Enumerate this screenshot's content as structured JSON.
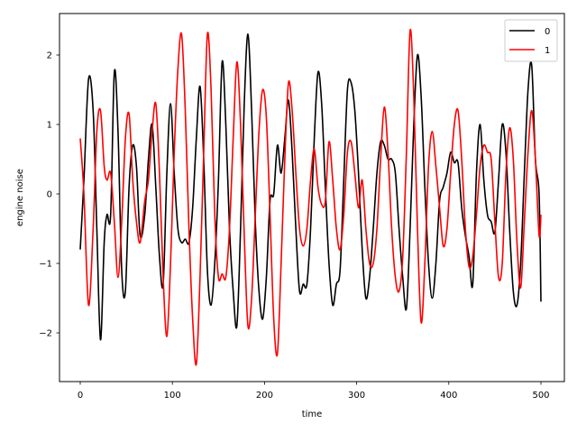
{
  "chart_data": {
    "type": "line",
    "title": "",
    "xlabel": "time",
    "ylabel": "engine noise",
    "xlim": [
      -25,
      525
    ],
    "ylim": [
      -2.65,
      2.6
    ],
    "xticks": [
      0,
      100,
      200,
      300,
      400,
      500
    ],
    "yticks": [
      -2,
      -1,
      0,
      1,
      2
    ],
    "xtick_labels": [
      "0",
      "100",
      "200",
      "300",
      "400",
      "500"
    ],
    "ytick_labels": [
      "−2",
      "−1",
      "0",
      "1",
      "2"
    ],
    "grid": false,
    "legend": {
      "position": "upper right",
      "entries": [
        "0",
        "1"
      ]
    },
    "series": [
      {
        "name": "0",
        "color": "#000000",
        "x": [
          0,
          4,
          9,
          14,
          18,
          22,
          26,
          29,
          33,
          37,
          41,
          45,
          49,
          53,
          57,
          61,
          65,
          70,
          74,
          78,
          82,
          86,
          90,
          94,
          98,
          102,
          106,
          110,
          114,
          118,
          122,
          126,
          130,
          134,
          138,
          142,
          146,
          150,
          154,
          158,
          162,
          166,
          170,
          174,
          178,
          182,
          186,
          190,
          194,
          198,
          202,
          206,
          210,
          214,
          218,
          222,
          226,
          230,
          234,
          238,
          242,
          246,
          250,
          254,
          258,
          262,
          266,
          270,
          274,
          278,
          282,
          286,
          290,
          294,
          298,
          302,
          306,
          310,
          314,
          318,
          322,
          326,
          330,
          334,
          338,
          342,
          346,
          350,
          354,
          358,
          362,
          366,
          370,
          374,
          378,
          382,
          386,
          390,
          394,
          398,
          402,
          406,
          410,
          414,
          418,
          422,
          426,
          430,
          434,
          438,
          442,
          446,
          450,
          454,
          458,
          462,
          466,
          470,
          474,
          478,
          482,
          486,
          490,
          494,
          498,
          500
        ],
        "y": [
          -0.8,
          0.2,
          1.65,
          1.2,
          -0.5,
          -2.1,
          -0.7,
          -0.3,
          -0.3,
          1.75,
          0.9,
          -1.1,
          -1.4,
          0.1,
          0.7,
          0.4,
          -0.6,
          -0.3,
          0.5,
          1.0,
          0.1,
          -0.9,
          -1.3,
          0.3,
          1.3,
          0.3,
          -0.5,
          -0.7,
          -0.65,
          -0.7,
          -0.2,
          0.8,
          1.55,
          0.5,
          -1.1,
          -1.6,
          -1.0,
          0.2,
          1.9,
          1.0,
          -0.5,
          -1.4,
          -1.9,
          -0.5,
          1.3,
          2.3,
          1.2,
          -0.4,
          -1.4,
          -1.8,
          -1.2,
          -0.1,
          0.0,
          0.7,
          0.3,
          0.8,
          1.35,
          0.6,
          -0.5,
          -1.4,
          -1.3,
          -1.3,
          -0.5,
          0.8,
          1.75,
          1.3,
          0.1,
          -1.0,
          -1.6,
          -1.3,
          -1.1,
          0.2,
          1.5,
          1.6,
          1.2,
          0.3,
          -0.8,
          -1.5,
          -1.2,
          -0.5,
          0.3,
          0.75,
          0.7,
          0.5,
          0.5,
          0.3,
          -0.5,
          -1.2,
          -1.65,
          -0.5,
          1.0,
          2.0,
          1.4,
          0.1,
          -1.0,
          -1.5,
          -1.0,
          -0.1,
          0.1,
          0.3,
          0.6,
          0.45,
          0.45,
          -0.2,
          -0.6,
          -0.9,
          -1.3,
          0.3,
          1.0,
          0.2,
          -0.3,
          -0.4,
          -0.55,
          0.2,
          1.0,
          0.6,
          -0.5,
          -1.4,
          -1.6,
          -1.0,
          0.3,
          1.5,
          1.85,
          0.5,
          0.0,
          -1.55
        ]
      },
      {
        "name": "1",
        "color": "#ff0000",
        "x": [
          0,
          4,
          9,
          14,
          18,
          22,
          26,
          29,
          33,
          37,
          41,
          45,
          49,
          53,
          57,
          61,
          65,
          70,
          74,
          78,
          82,
          86,
          90,
          94,
          98,
          102,
          106,
          110,
          114,
          118,
          122,
          126,
          130,
          134,
          138,
          142,
          146,
          150,
          154,
          158,
          162,
          166,
          170,
          174,
          178,
          182,
          186,
          190,
          194,
          198,
          202,
          206,
          210,
          214,
          218,
          222,
          226,
          230,
          234,
          238,
          242,
          246,
          250,
          254,
          258,
          262,
          266,
          270,
          274,
          278,
          282,
          286,
          290,
          294,
          298,
          302,
          306,
          310,
          314,
          318,
          322,
          326,
          330,
          334,
          338,
          342,
          346,
          350,
          354,
          358,
          362,
          366,
          370,
          374,
          378,
          382,
          386,
          390,
          394,
          398,
          402,
          406,
          410,
          414,
          418,
          422,
          426,
          430,
          434,
          438,
          442,
          446,
          450,
          454,
          458,
          462,
          466,
          470,
          474,
          478,
          482,
          486,
          490,
          494,
          498,
          500
        ],
        "y": [
          0.8,
          0.0,
          -1.6,
          -0.5,
          0.9,
          1.2,
          0.4,
          0.2,
          0.3,
          -0.4,
          -1.2,
          -0.4,
          0.8,
          1.15,
          0.2,
          -0.4,
          -0.7,
          -0.1,
          0.2,
          0.9,
          1.3,
          0.3,
          -1.2,
          -2.05,
          -1.0,
          0.6,
          1.8,
          2.3,
          1.2,
          -0.5,
          -1.8,
          -2.45,
          -1.2,
          0.6,
          2.3,
          1.5,
          -0.3,
          -1.2,
          -1.15,
          -1.2,
          -0.5,
          0.8,
          1.9,
          1.0,
          -0.6,
          -1.9,
          -1.5,
          -0.3,
          0.9,
          1.5,
          1.1,
          -0.3,
          -1.8,
          -2.3,
          -1.0,
          0.5,
          1.6,
          1.2,
          0.3,
          -0.5,
          -0.75,
          -0.5,
          0.2,
          0.65,
          0.1,
          -0.15,
          -0.1,
          0.75,
          0.2,
          -0.5,
          -0.8,
          -0.3,
          0.6,
          0.75,
          0.3,
          -0.2,
          0.2,
          -0.5,
          -1.0,
          -1.0,
          -0.5,
          0.5,
          1.25,
          0.6,
          -0.5,
          -1.2,
          -1.4,
          -0.9,
          0.6,
          2.35,
          1.4,
          -0.5,
          -1.85,
          -1.0,
          0.4,
          0.9,
          0.4,
          -0.2,
          -0.75,
          -0.5,
          0.3,
          1.0,
          1.2,
          0.5,
          -0.5,
          -1.05,
          -0.9,
          -0.3,
          0.4,
          0.7,
          0.6,
          0.5,
          -0.4,
          -1.2,
          -1.0,
          0.3,
          0.95,
          0.5,
          -0.7,
          -1.35,
          -0.4,
          0.6,
          1.2,
          0.5,
          -0.6,
          -0.3
        ]
      }
    ]
  },
  "axes": {
    "xlabel": "time",
    "ylabel": "engine noise"
  },
  "legend": {
    "items": [
      {
        "label": "0",
        "color": "#000000"
      },
      {
        "label": "1",
        "color": "#ff0000"
      }
    ]
  }
}
